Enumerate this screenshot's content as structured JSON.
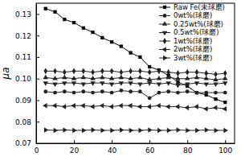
{
  "chart_data": {
    "type": "line",
    "y_label": "μa",
    "x": [
      5,
      10,
      15,
      20,
      25,
      30,
      35,
      40,
      45,
      50,
      55,
      60,
      65,
      70,
      75,
      80,
      85,
      90,
      95,
      100
    ],
    "xlim": [
      0,
      105
    ],
    "xticks": [
      0,
      20,
      40,
      60,
      80,
      100
    ],
    "ylim": [
      0.07,
      0.135
    ],
    "yticks": [
      0.07,
      0.08,
      0.09,
      {
        "value": 0.1,
        "label": "0.10"
      },
      0.11,
      0.12,
      0.13
    ],
    "legend": "top-right",
    "series": [
      {
        "name": "Raw Fe(未球磨)",
        "color": "#000000",
        "marker": "square",
        "values": [
          0.1325,
          0.131,
          0.1275,
          0.126,
          0.1235,
          0.1215,
          0.119,
          0.117,
          0.115,
          0.112,
          0.11,
          0.1055,
          0.104,
          0.1015,
          0.0985,
          0.0965,
          0.0935,
          0.0925,
          0.0905,
          0.089
        ]
      },
      {
        "name": "0wt%(球磨)",
        "color": "#222222",
        "marker": "circle",
        "values": [
          0.094,
          0.0935,
          0.094,
          0.0935,
          0.094,
          0.0935,
          0.094,
          0.0935,
          0.0945,
          0.094,
          0.094,
          0.091,
          0.0935,
          0.094,
          0.0935,
          0.094,
          0.0935,
          0.0935,
          0.0935,
          0.0935
        ]
      },
      {
        "name": "0.25wt%(球磨)",
        "color": "#222222",
        "marker": "triangle-up",
        "values": [
          0.1005,
          0.1,
          0.1005,
          0.1,
          0.1005,
          0.1,
          0.1005,
          0.1,
          0.1005,
          0.1,
          0.1005,
          0.0995,
          0.1,
          0.1005,
          0.1,
          0.1,
          0.1005,
          0.1,
          0.0995,
          0.1
        ]
      },
      {
        "name": "0.5wt%(球磨)",
        "color": "#222222",
        "marker": "triangle-down",
        "values": [
          0.098,
          0.0975,
          0.098,
          0.098,
          0.0975,
          0.098,
          0.098,
          0.0975,
          0.098,
          0.098,
          0.0975,
          0.098,
          0.0975,
          0.098,
          0.097,
          0.0975,
          0.098,
          0.0975,
          0.0975,
          0.098
        ]
      },
      {
        "name": "1wt%(球磨)",
        "color": "#222222",
        "marker": "diamond",
        "values": [
          0.1035,
          0.1035,
          0.103,
          0.1035,
          0.1035,
          0.103,
          0.1035,
          0.1035,
          0.103,
          0.1035,
          0.1035,
          0.103,
          0.1035,
          0.103,
          0.1025,
          0.103,
          0.103,
          0.1025,
          0.102,
          0.1025
        ]
      },
      {
        "name": "2wt%(球磨)",
        "color": "#222222",
        "marker": "triangle-left",
        "values": [
          0.0875,
          0.0875,
          0.087,
          0.0875,
          0.0875,
          0.087,
          0.0875,
          0.087,
          0.0875,
          0.0875,
          0.087,
          0.087,
          0.0875,
          0.087,
          0.087,
          0.0865,
          0.087,
          0.086,
          0.0865,
          0.086
        ]
      },
      {
        "name": "3wt%(球磨)",
        "color": "#222222",
        "marker": "triangle-right",
        "values": [
          0.0762,
          0.076,
          0.0762,
          0.076,
          0.076,
          0.0762,
          0.076,
          0.076,
          0.0762,
          0.076,
          0.076,
          0.0762,
          0.076,
          0.076,
          0.0762,
          0.076,
          0.076,
          0.0762,
          0.076,
          0.076
        ]
      }
    ]
  }
}
